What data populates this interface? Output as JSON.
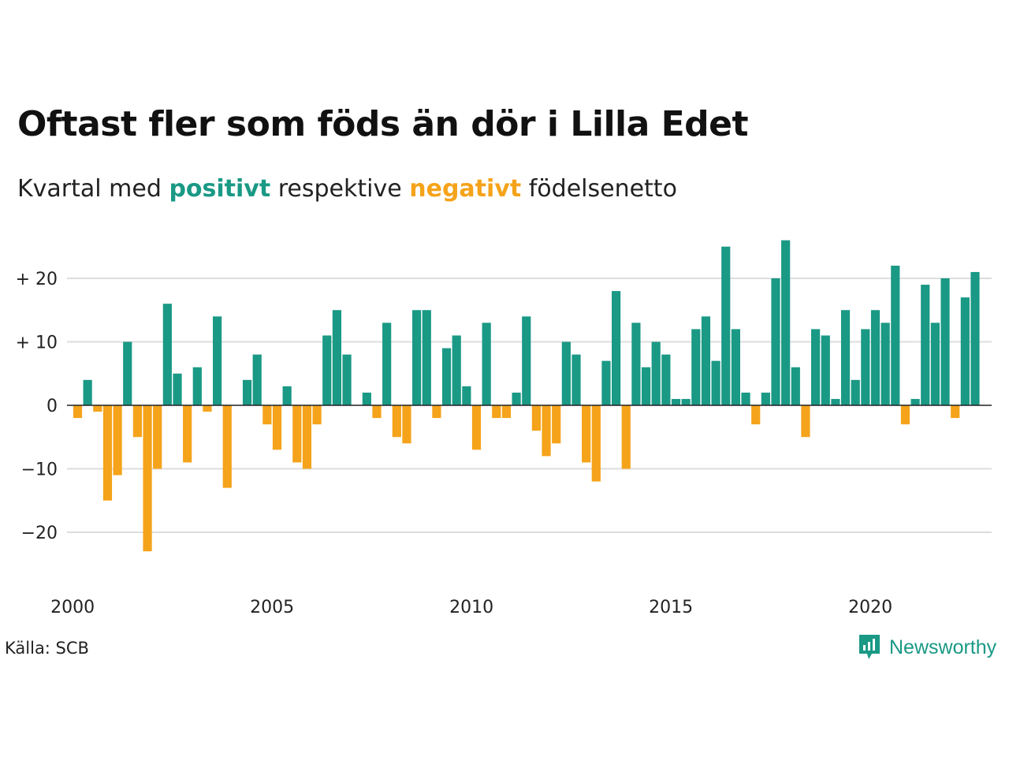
{
  "title": "Oftast fler som föds än dör i Lilla Edet",
  "subtitle": {
    "before": "Kvartal med",
    "positive": "positivt",
    "middle": "respektive",
    "negative": "negativt",
    "after": "födelsenetto"
  },
  "source": "Källa: SCB",
  "brand": "Newsworthy",
  "colors": {
    "positive": "#1a9985",
    "negative": "#f5a31a",
    "grid": "#dddddd",
    "zero_line": "#222222",
    "text": "#111111"
  },
  "chart_data": {
    "type": "bar",
    "title": "Oftast fler som föds än dör i Lilla Edet",
    "subtitle": "Kvartal med positivt respektive negativt födelsenetto",
    "xlabel": "",
    "ylabel": "",
    "x_start": 2000,
    "periods_per_year": 4,
    "ylim": [
      -28,
      30
    ],
    "yticks": [
      -20,
      -10,
      0,
      10,
      20
    ],
    "ytick_labels": [
      "−20",
      "−10",
      "0",
      "+ 10",
      "+ 20"
    ],
    "xticks": [
      2000,
      2005,
      2010,
      2015,
      2020
    ],
    "xtick_labels": [
      "2000",
      "2005",
      "2010",
      "2015",
      "2020"
    ],
    "grid": true,
    "values": [
      -2,
      4,
      -1,
      -15,
      -11,
      10,
      -5,
      -23,
      -10,
      16,
      5,
      -9,
      6,
      -1,
      14,
      -13,
      0,
      4,
      8,
      -3,
      -7,
      3,
      -9,
      -10,
      -3,
      11,
      15,
      8,
      0,
      2,
      -2,
      13,
      -5,
      -6,
      15,
      15,
      -2,
      9,
      11,
      3,
      -7,
      13,
      -2,
      -2,
      2,
      14,
      -4,
      -8,
      -6,
      10,
      8,
      -9,
      -12,
      7,
      18,
      -10,
      13,
      6,
      10,
      8,
      1,
      1,
      12,
      14,
      7,
      25,
      12,
      2,
      -3,
      2,
      20,
      26,
      6,
      -5,
      12,
      11,
      1,
      15,
      4,
      12,
      15,
      13,
      22,
      -3,
      1,
      19,
      13,
      20,
      -2,
      17,
      21
    ]
  }
}
